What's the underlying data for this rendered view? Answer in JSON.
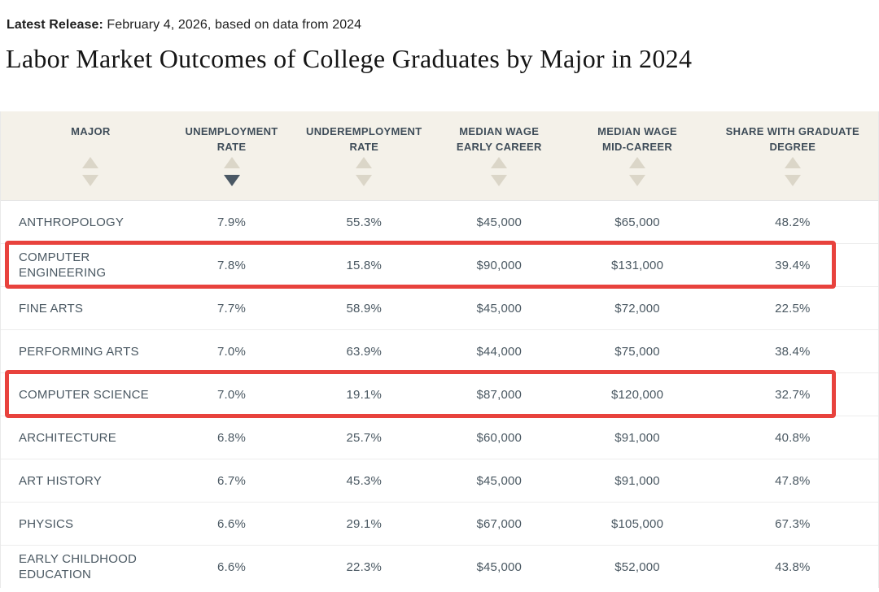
{
  "page": {
    "release_label": "Latest Release:",
    "release_rest": " February 4, 2026, based on data from 2024",
    "title": "Labor Market Outcomes of College Graduates by Major in 2024"
  },
  "colors": {
    "header_bg": "#f4f1e9",
    "header_text": "#3f4d59",
    "body_text": "#4a5862",
    "arrow_inactive": "#dbd6c8",
    "arrow_active": "#4a5864",
    "divider": "#ededed",
    "highlight": "#e8423d",
    "title_color": "#151515"
  },
  "table": {
    "columns": [
      {
        "id": "major",
        "lines": [
          "MAJOR"
        ],
        "sort": "none"
      },
      {
        "id": "unemployment-rate",
        "lines": [
          "UNEMPLOYMENT",
          "RATE"
        ],
        "sort": "desc"
      },
      {
        "id": "underemployment-rate",
        "lines": [
          "UNDEREMPLOYMENT",
          "RATE"
        ],
        "sort": "none"
      },
      {
        "id": "median-wage-early-career",
        "lines": [
          "MEDIAN WAGE",
          "EARLY CAREER"
        ],
        "sort": "none"
      },
      {
        "id": "median-wage-mid-career",
        "lines": [
          "MEDIAN WAGE",
          "MID-CAREER"
        ],
        "sort": "none"
      },
      {
        "id": "share-with-graduate-degree",
        "lines": [
          "SHARE WITH GRADUATE",
          "DEGREE"
        ],
        "sort": "none"
      }
    ],
    "rows": [
      [
        "ANTHROPOLOGY",
        "7.9%",
        "55.3%",
        "$45,000",
        "$65,000",
        "48.2%"
      ],
      [
        "COMPUTER ENGINEERING",
        "7.8%",
        "15.8%",
        "$90,000",
        "$131,000",
        "39.4%"
      ],
      [
        "FINE ARTS",
        "7.7%",
        "58.9%",
        "$45,000",
        "$72,000",
        "22.5%"
      ],
      [
        "PERFORMING ARTS",
        "7.0%",
        "63.9%",
        "$44,000",
        "$75,000",
        "38.4%"
      ],
      [
        "COMPUTER SCIENCE",
        "7.0%",
        "19.1%",
        "$87,000",
        "$120,000",
        "32.7%"
      ],
      [
        "ARCHITECTURE",
        "6.8%",
        "25.7%",
        "$60,000",
        "$91,000",
        "40.8%"
      ],
      [
        "ART HISTORY",
        "6.7%",
        "45.3%",
        "$45,000",
        "$91,000",
        "47.8%"
      ],
      [
        "PHYSICS",
        "6.6%",
        "29.1%",
        "$67,000",
        "$105,000",
        "67.3%"
      ],
      [
        "EARLY CHILDHOOD EDUCATION",
        "6.6%",
        "22.3%",
        "$45,000",
        "$52,000",
        "43.8%"
      ]
    ],
    "highlighted_rows": [
      "COMPUTER ENGINEERING",
      "COMPUTER SCIENCE"
    ]
  }
}
